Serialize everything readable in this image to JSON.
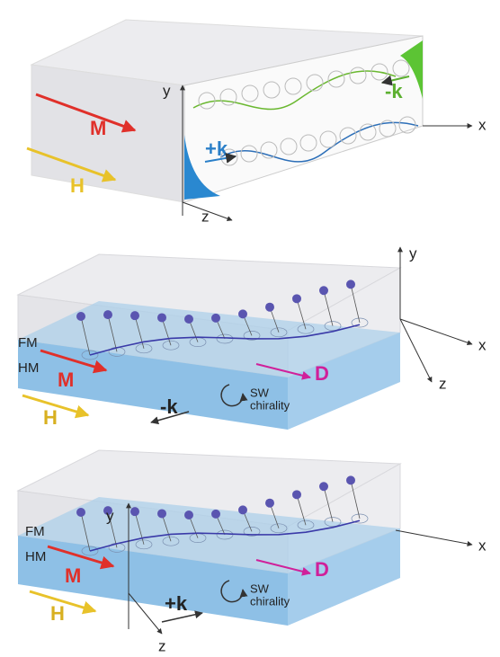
{
  "panels": [
    {
      "axes": {
        "x": "x",
        "y": "y",
        "z": "z"
      },
      "labels": {
        "magnetization": "M",
        "field": "H",
        "wave_plus": "+k",
        "wave_minus": "-k"
      }
    },
    {
      "axes": {
        "x": "x",
        "y": "y",
        "z": "z"
      },
      "layers": {
        "top": "FM",
        "bottom": "HM"
      },
      "labels": {
        "magnetization": "M",
        "field": "H",
        "dmi": "D",
        "wave": "-k",
        "chirality": [
          "SW",
          "chirality"
        ]
      }
    },
    {
      "axes": {
        "x": "x",
        "y": "y",
        "z": "z"
      },
      "layers": {
        "top": "FM",
        "bottom": "HM"
      },
      "labels": {
        "magnetization": "M",
        "field": "H",
        "dmi": "D",
        "wave": "+k",
        "chirality": [
          "SW",
          "chirality"
        ]
      }
    }
  ]
}
